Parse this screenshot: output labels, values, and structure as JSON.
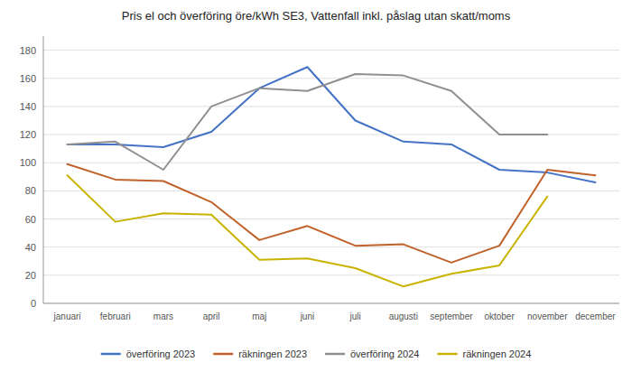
{
  "chart_data": {
    "type": "line",
    "title": "Pris el och överföring öre/kWh SE3, Vattenfall inkl. påslag utan skatt/moms",
    "categories": [
      "januari",
      "februari",
      "mars",
      "april",
      "maj",
      "juni",
      "juli",
      "augusti",
      "september",
      "oktober",
      "november",
      "december"
    ],
    "series": [
      {
        "name": "överföring 2023",
        "color": "#4472C4",
        "values": [
          113,
          113,
          111,
          122,
          153,
          168,
          130,
          115,
          113,
          95,
          93,
          86
        ]
      },
      {
        "name": "räkningen 2023",
        "color": "#C0622A",
        "values": [
          99,
          88,
          87,
          72,
          45,
          55,
          41,
          42,
          29,
          41,
          95,
          91
        ]
      },
      {
        "name": "överföring 2024",
        "color": "#909090",
        "values": [
          113,
          115,
          95,
          140,
          153,
          151,
          163,
          162,
          151,
          120,
          120,
          null
        ]
      },
      {
        "name": "räkningen 2024",
        "color": "#C8B400",
        "values": [
          91,
          58,
          64,
          63,
          31,
          32,
          25,
          12,
          21,
          27,
          76,
          null
        ]
      }
    ],
    "ylim": [
      0,
      190
    ],
    "yticks": [
      0,
      20,
      40,
      60,
      80,
      100,
      120,
      140,
      160,
      180
    ],
    "grid": true,
    "legend": "bottom"
  }
}
